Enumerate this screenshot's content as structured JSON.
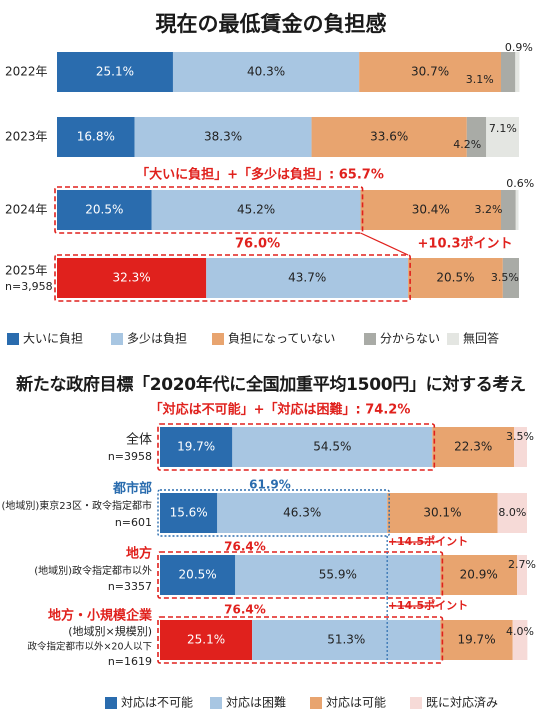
{
  "chart_data": [
    {
      "type": "bar",
      "stacked": true,
      "orientation": "horizontal",
      "title": "現在の最低賃金の負担感",
      "categories": [
        "2022年",
        "2023年",
        "2024年",
        "2025年"
      ],
      "category_notes": [
        "",
        "",
        "",
        "n=3,958"
      ],
      "series": [
        {
          "name": "大いに負担",
          "values": [
            25.1,
            16.8,
            20.5,
            32.3
          ],
          "labels": [
            "25.1%",
            "16.8%",
            "20.5%",
            "32.3%"
          ]
        },
        {
          "name": "多少は負担",
          "values": [
            40.3,
            38.3,
            45.2,
            43.7
          ],
          "labels": [
            "40.3%",
            "38.3%",
            "45.2%",
            "43.7%"
          ]
        },
        {
          "name": "負担になっていない",
          "values": [
            30.7,
            33.6,
            30.4,
            20.5
          ],
          "labels": [
            "30.7%",
            "33.6%",
            "30.4%",
            "20.5%"
          ]
        },
        {
          "name": "分からない",
          "values": [
            3.1,
            4.2,
            3.2,
            3.5
          ],
          "labels": [
            "3.1%",
            "4.2%",
            "3.2%",
            "3.5%"
          ]
        },
        {
          "name": "無回答",
          "values": [
            0.9,
            7.1,
            0.6,
            0.0
          ],
          "labels": [
            "0.9%",
            "7.1%",
            "0.6%",
            ""
          ]
        }
      ],
      "xlim": [
        0,
        100
      ],
      "annotations": [
        "「大いに負担」+「多少は負担」: 65.7%",
        "76.0%",
        "+10.3ポイント"
      ],
      "legend_position": "bottom"
    },
    {
      "type": "bar",
      "stacked": true,
      "orientation": "horizontal",
      "title": "新たな政府目標「2020年代に全国加重平均1500円」に対する考え",
      "categories": [
        "全体",
        "都市部",
        "地方",
        "地方・小規模企業"
      ],
      "category_notes": [
        [
          "n=3958"
        ],
        [
          "(地域別)東京23区・政令指定都市",
          "n=601"
        ],
        [
          "(地域別)政令指定都市以外",
          "n=3357"
        ],
        [
          "(地域別×規模別)",
          "政令指定都市以外×20人以下",
          "n=1619"
        ]
      ],
      "series": [
        {
          "name": "対応は不可能",
          "values": [
            19.7,
            15.6,
            20.5,
            25.1
          ],
          "labels": [
            "19.7%",
            "15.6%",
            "20.5%",
            "25.1%"
          ]
        },
        {
          "name": "対応は困難",
          "values": [
            54.5,
            46.3,
            55.9,
            51.3
          ],
          "labels": [
            "54.5%",
            "46.3%",
            "55.9%",
            "51.3%"
          ]
        },
        {
          "name": "対応は可能",
          "values": [
            22.3,
            30.1,
            20.9,
            19.7
          ],
          "labels": [
            "22.3%",
            "30.1%",
            "20.9%",
            "19.7%"
          ]
        },
        {
          "name": "既に対応済み",
          "values": [
            3.5,
            8.0,
            2.7,
            4.0
          ],
          "labels": [
            "3.5%",
            "8.0%",
            "2.7%",
            "4.0%"
          ]
        }
      ],
      "xlim": [
        0,
        100
      ],
      "annotations": [
        "「対応は不可能」+「対応は困難」: 74.2%",
        "61.9%",
        "76.4%",
        "+14.5ポイント",
        "76.4%",
        "+14.5ポイント"
      ],
      "legend_position": "bottom"
    }
  ],
  "colors": {
    "dark_blue": "#2a6cae",
    "red": "#e0211d",
    "light_blue": "#a8c6e2",
    "orange": "#e8a46f",
    "gray": "#a9aba6",
    "light_gray": "#e4e6e2",
    "pink": "#f6dad7",
    "annotation_red": "#e0211d",
    "blue_label": "#2a6cae"
  }
}
